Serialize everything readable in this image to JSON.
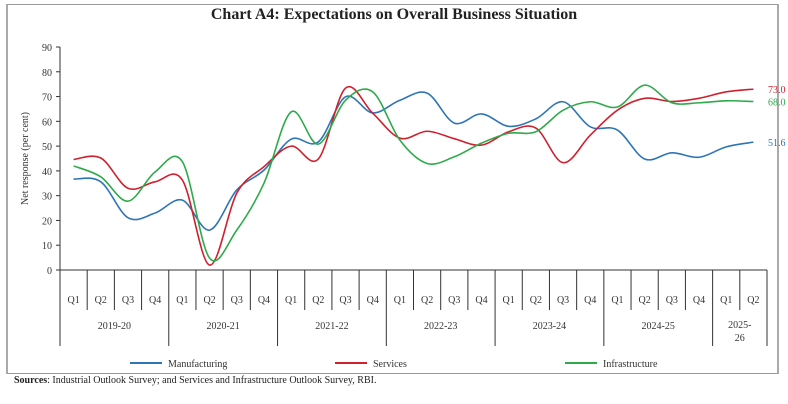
{
  "chart_data": {
    "type": "line",
    "title": "Chart A4: Expectations on Overall Business Situation",
    "ylabel": "Net  response (per cent)",
    "xlabel": "",
    "ylim": [
      0,
      90
    ],
    "yticks": [
      0,
      10,
      20,
      30,
      40,
      50,
      60,
      70,
      80,
      90
    ],
    "grid": false,
    "legend_position": "bottom",
    "quarters": [
      "Q1",
      "Q2",
      "Q3",
      "Q4",
      "Q1",
      "Q2",
      "Q3",
      "Q4",
      "Q1",
      "Q2",
      "Q3",
      "Q4",
      "Q1",
      "Q2",
      "Q3",
      "Q4",
      "Q1",
      "Q2",
      "Q3",
      "Q4",
      "Q1",
      "Q2",
      "Q3",
      "Q4",
      "Q1",
      "Q2"
    ],
    "years": [
      {
        "label": "2019-20",
        "span": 4
      },
      {
        "label": "2020-21",
        "span": 4
      },
      {
        "label": "2021-22",
        "span": 4
      },
      {
        "label": "2022-23",
        "span": 4
      },
      {
        "label": "2023-24",
        "span": 4
      },
      {
        "label": "2024-25",
        "span": 4
      },
      {
        "label": "2025-26",
        "span": 2
      }
    ],
    "series": [
      {
        "name": "Manufacturing",
        "color": "#2e75b6",
        "end_label": "51.6",
        "values": [
          36.7,
          35.6,
          21.1,
          23,
          28.2,
          16.1,
          32.3,
          40.3,
          52.8,
          51.7,
          69.9,
          63.4,
          68.5,
          71.4,
          59.3,
          63,
          58,
          61,
          67.9,
          57.8,
          56.5,
          44.8,
          47.3,
          45.5,
          49.7,
          51.6
        ]
      },
      {
        "name": "Services",
        "color": "#d0202e",
        "end_label": "73.0",
        "values": [
          44.6,
          45.2,
          33,
          35.6,
          36.3,
          2,
          31,
          41.7,
          50,
          44.8,
          73.4,
          63.3,
          53.2,
          56,
          53,
          50.4,
          55.8,
          57.3,
          43.3,
          54.4,
          64.5,
          69.3,
          68,
          69.3,
          71.9,
          73.0
        ]
      },
      {
        "name": "Infrastructure",
        "color": "#2daa4a",
        "end_label": "68.0",
        "values": [
          42,
          37.6,
          27.8,
          39.6,
          43.7,
          4.8,
          16.1,
          35,
          63.8,
          50.8,
          68.5,
          71.9,
          52.4,
          43,
          45.7,
          51.2,
          55.2,
          55.8,
          64.5,
          67.9,
          65.8,
          74.6,
          67.5,
          67.5,
          68.3,
          68.0
        ]
      }
    ]
  },
  "sources": {
    "label": "Sources",
    "text": ": Industrial Outlook Survey; and Services and Infrastructure Outlook Survey, RBI."
  }
}
